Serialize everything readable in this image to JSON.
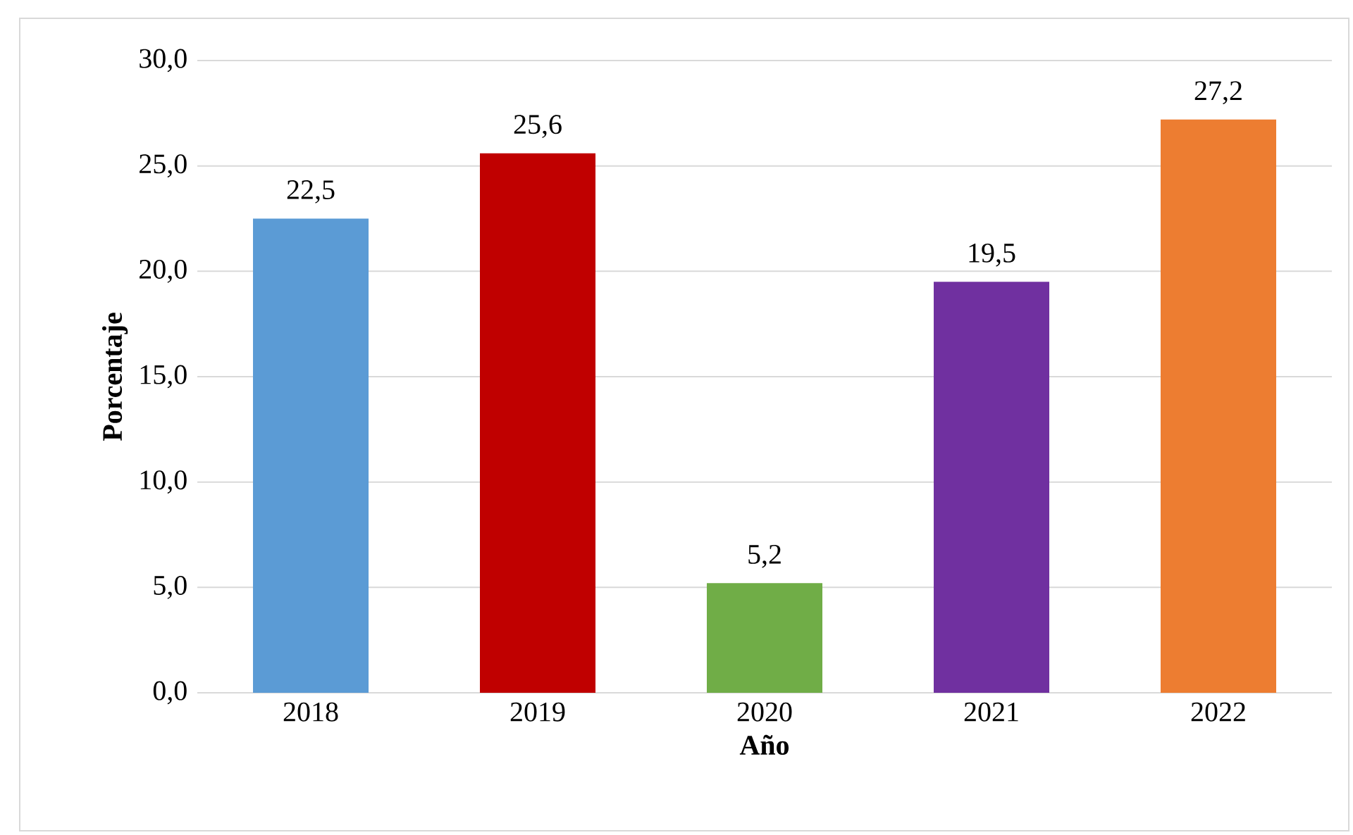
{
  "chart_data": {
    "type": "bar",
    "xlabel": "Año",
    "ylabel": "Porcentaje",
    "categories": [
      "2018",
      "2019",
      "2020",
      "2021",
      "2022"
    ],
    "values": [
      22.5,
      25.6,
      5.2,
      19.5,
      27.2
    ],
    "value_labels": [
      "22,5",
      "25,6",
      "5,2",
      "19,5",
      "27,2"
    ],
    "colors": [
      "#5b9bd5",
      "#c00000",
      "#70ad47",
      "#7030a0",
      "#ed7d31"
    ],
    "ylim": [
      0,
      30
    ],
    "yticks": [
      {
        "value": 0,
        "label": "0,0"
      },
      {
        "value": 5,
        "label": "5,0"
      },
      {
        "value": 10,
        "label": "10,0"
      },
      {
        "value": 15,
        "label": "15,0"
      },
      {
        "value": 20,
        "label": "20,0"
      },
      {
        "value": 25,
        "label": "25,0"
      },
      {
        "value": 30,
        "label": "30,0"
      }
    ],
    "grid": "y"
  }
}
